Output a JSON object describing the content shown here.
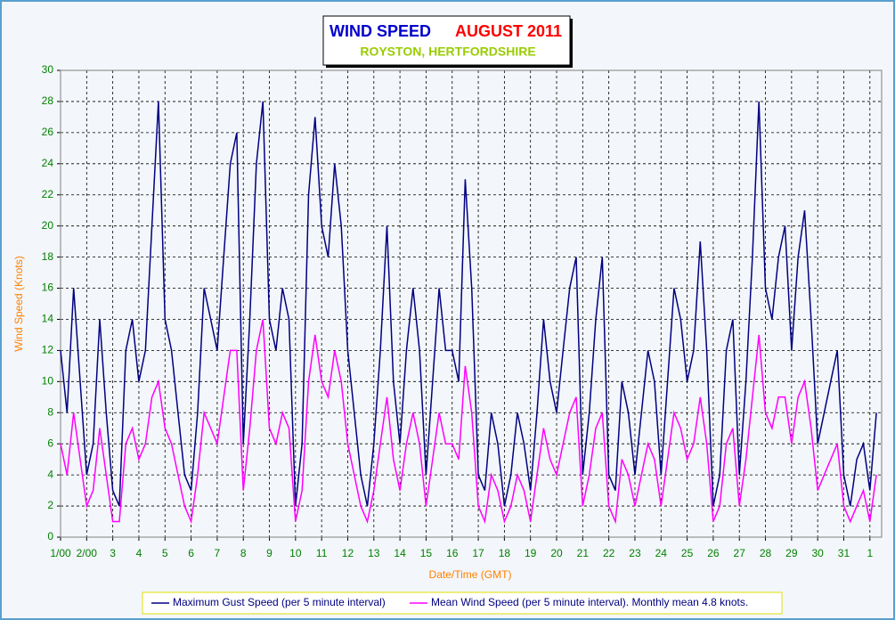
{
  "chart_data": {
    "type": "line",
    "title": "WIND SPEED",
    "subtitle": "AUGUST 2011",
    "location": "ROYSTON, HERTFORDSHIRE",
    "y_label": "Wind Speed (Knots)",
    "x_label": "Date/Time (GMT)",
    "xlim": [
      1,
      32.45
    ],
    "ylim": [
      0,
      30
    ],
    "grid": true,
    "yticks": [
      0,
      2,
      4,
      6,
      8,
      10,
      12,
      14,
      16,
      18,
      20,
      22,
      24,
      26,
      28,
      30
    ],
    "xticks": [
      {
        "value": 1,
        "label": "1/00"
      },
      {
        "value": 2,
        "label": "2/00"
      },
      3,
      4,
      5,
      6,
      7,
      8,
      9,
      10,
      11,
      12,
      13,
      14,
      15,
      16,
      17,
      18,
      19,
      20,
      21,
      22,
      23,
      24,
      25,
      26,
      27,
      28,
      29,
      30,
      31,
      {
        "value": 32,
        "label": "1"
      }
    ],
    "x": [
      1,
      1.25,
      1.5,
      1.75,
      2,
      2.25,
      2.5,
      2.75,
      3,
      3.25,
      3.5,
      3.75,
      4,
      4.25,
      4.5,
      4.75,
      5,
      5.25,
      5.5,
      5.75,
      6,
      6.25,
      6.5,
      6.75,
      7,
      7.25,
      7.5,
      7.75,
      8,
      8.25,
      8.5,
      8.75,
      9,
      9.25,
      9.5,
      9.75,
      10,
      10.25,
      10.5,
      10.75,
      11,
      11.25,
      11.5,
      11.75,
      12,
      12.25,
      12.5,
      12.75,
      13,
      13.25,
      13.5,
      13.75,
      14,
      14.25,
      14.5,
      14.75,
      15,
      15.25,
      15.5,
      15.75,
      16,
      16.25,
      16.5,
      16.75,
      17,
      17.25,
      17.5,
      17.75,
      18,
      18.25,
      18.5,
      18.75,
      19,
      19.25,
      19.5,
      19.75,
      20,
      20.25,
      20.5,
      20.75,
      21,
      21.25,
      21.5,
      21.75,
      22,
      22.25,
      22.5,
      22.75,
      23,
      23.25,
      23.5,
      23.75,
      24,
      24.25,
      24.5,
      24.75,
      25,
      25.25,
      25.5,
      25.75,
      26,
      26.25,
      26.5,
      26.75,
      27,
      27.25,
      27.5,
      27.75,
      28,
      28.25,
      28.5,
      28.75,
      29,
      29.25,
      29.5,
      29.75,
      30,
      30.25,
      30.5,
      30.75,
      31,
      31.25,
      31.5,
      31.75,
      32,
      32.25
    ],
    "series": [
      {
        "name": "Maximum Gust Speed (per 5 minute interval)",
        "color": "#000080",
        "values": [
          12,
          8,
          16,
          10,
          4,
          6,
          14,
          8,
          3,
          2,
          12,
          14,
          10,
          12,
          20,
          28,
          14,
          12,
          8,
          4,
          3,
          8,
          16,
          14,
          12,
          18,
          24,
          26,
          6,
          14,
          24,
          28,
          14,
          12,
          16,
          14,
          2,
          6,
          22,
          27,
          20,
          18,
          24,
          20,
          12,
          8,
          4,
          2,
          6,
          12,
          20,
          10,
          6,
          12,
          16,
          12,
          4,
          10,
          16,
          12,
          12,
          10,
          23,
          16,
          4,
          3,
          8,
          6,
          2,
          4,
          8,
          6,
          3,
          8,
          14,
          10,
          8,
          12,
          16,
          18,
          4,
          8,
          14,
          18,
          4,
          3,
          10,
          8,
          4,
          8,
          12,
          10,
          4,
          10,
          16,
          14,
          10,
          12,
          19,
          12,
          2,
          4,
          12,
          14,
          4,
          10,
          18,
          28,
          16,
          14,
          18,
          20,
          12,
          18,
          21,
          14,
          6,
          8,
          10,
          12,
          4,
          2,
          5,
          6,
          3,
          8
        ]
      },
      {
        "name": "Mean Wind Speed (per 5 minute interval). Monthly mean 4.8 knots.",
        "color": "#ff00ff",
        "values": [
          6,
          4,
          8,
          5,
          2,
          3,
          7,
          4,
          1,
          1,
          6,
          7,
          5,
          6,
          9,
          10,
          7,
          6,
          4,
          2,
          1,
          4,
          8,
          7,
          6,
          9,
          12,
          12,
          3,
          7,
          12,
          14,
          7,
          6,
          8,
          7,
          1,
          3,
          10,
          13,
          10,
          9,
          12,
          10,
          6,
          4,
          2,
          1,
          3,
          6,
          9,
          5,
          3,
          6,
          8,
          6,
          2,
          5,
          8,
          6,
          6,
          5,
          11,
          8,
          2,
          1,
          4,
          3,
          1,
          2,
          4,
          3,
          1,
          4,
          7,
          5,
          4,
          6,
          8,
          9,
          2,
          4,
          7,
          8,
          2,
          1,
          5,
          4,
          2,
          4,
          6,
          5,
          2,
          5,
          8,
          7,
          5,
          6,
          9,
          6,
          1,
          2,
          6,
          7,
          2,
          5,
          9,
          13,
          8,
          7,
          9,
          9,
          6,
          9,
          10,
          7,
          3,
          4,
          5,
          6,
          2,
          1,
          2,
          3,
          1,
          4
        ]
      }
    ]
  }
}
